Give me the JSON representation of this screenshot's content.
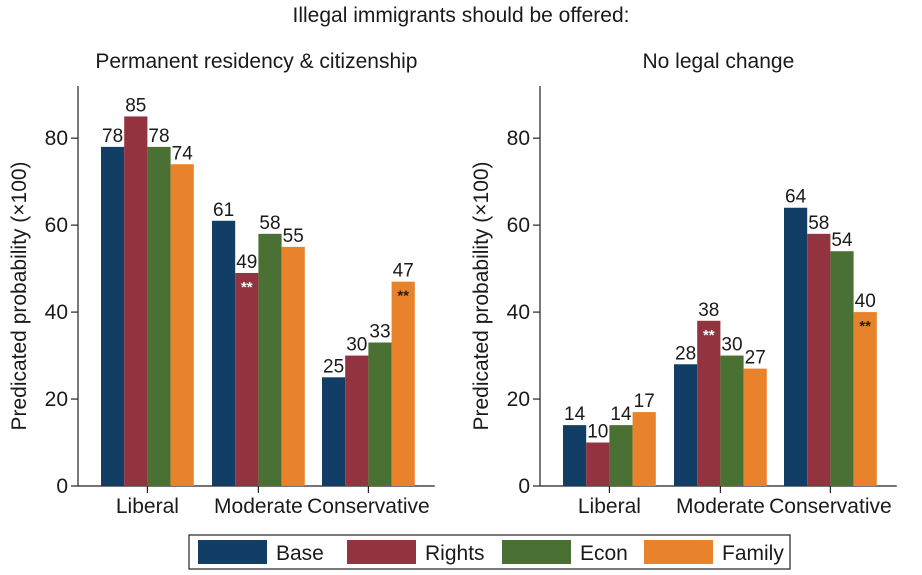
{
  "supertitle": "Illegal immigrants should be offered:",
  "chart_data": [
    {
      "type": "bar",
      "title": "Permanent residency & citizenship",
      "ylabel": "Predicated probability (×100)",
      "xlabel": "",
      "ylim": [
        0,
        92
      ],
      "yticks": [
        0,
        20,
        40,
        60,
        80
      ],
      "categories": [
        "Liberal",
        "Moderate",
        "Conservative"
      ],
      "series": [
        {
          "name": "Base",
          "values": [
            78,
            61,
            25
          ],
          "stars": [
            "",
            "",
            ""
          ]
        },
        {
          "name": "Rights",
          "values": [
            85,
            49,
            30
          ],
          "stars": [
            "",
            "**",
            ""
          ]
        },
        {
          "name": "Econ",
          "values": [
            78,
            58,
            33
          ],
          "stars": [
            "",
            "",
            ""
          ]
        },
        {
          "name": "Family",
          "values": [
            74,
            55,
            47
          ],
          "stars": [
            "",
            "",
            "**"
          ]
        }
      ],
      "grid": false
    },
    {
      "type": "bar",
      "title": "No legal change",
      "ylabel": "Predicated probability (×100)",
      "xlabel": "",
      "ylim": [
        0,
        92
      ],
      "yticks": [
        0,
        20,
        40,
        60,
        80
      ],
      "categories": [
        "Liberal",
        "Moderate",
        "Conservative"
      ],
      "series": [
        {
          "name": "Base",
          "values": [
            14,
            28,
            64
          ],
          "stars": [
            "",
            "",
            ""
          ]
        },
        {
          "name": "Rights",
          "values": [
            10,
            38,
            58
          ],
          "stars": [
            "",
            "**",
            ""
          ]
        },
        {
          "name": "Econ",
          "values": [
            14,
            30,
            54
          ],
          "stars": [
            "",
            "",
            ""
          ]
        },
        {
          "name": "Family",
          "values": [
            17,
            27,
            40
          ],
          "stars": [
            "",
            "",
            "**"
          ]
        }
      ],
      "grid": false
    }
  ],
  "legend": {
    "position": "bottom",
    "items": [
      {
        "label": "Base",
        "color": "#123e66"
      },
      {
        "label": "Rights",
        "color": "#92333f"
      },
      {
        "label": "Econ",
        "color": "#4a7133"
      },
      {
        "label": "Family",
        "color": "#e8822b"
      }
    ]
  }
}
